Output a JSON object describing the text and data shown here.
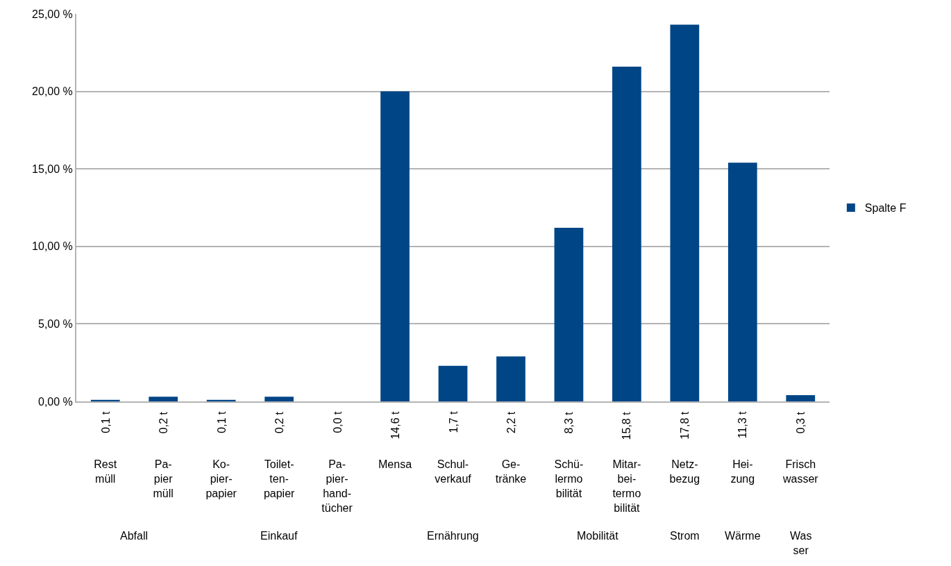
{
  "chart_data": {
    "type": "bar",
    "categories": [
      "Rest\nmüll",
      "Pa-\npier\nmüll",
      "Ko-\npier-\npapier",
      "Toilet-\nten-\npapier",
      "Pa-\npier-\nhand-\ntücher",
      "Mensa",
      "Schul-\nverkauf",
      "Ge-\ntränke",
      "Schü-\nlermo\nbilität",
      "Mitar-\nbei-\ntermo\nbilität",
      "Netz-\nbezug",
      "Hei-\nzung",
      "Frisch\nwasser"
    ],
    "series": [
      {
        "name": "Spalte F",
        "color": "#004586",
        "values": [
          0.1,
          0.3,
          0.1,
          0.3,
          0.0,
          20.0,
          2.3,
          2.9,
          11.2,
          21.6,
          24.3,
          15.4,
          0.4
        ]
      }
    ],
    "ylim": [
      0,
      25
    ],
    "yticks": [
      {
        "value": 0,
        "label": "0,00 %"
      },
      {
        "value": 5,
        "label": "5,00 %"
      },
      {
        "value": 10,
        "label": "10,00 %"
      },
      {
        "value": 15,
        "label": "15,00 %"
      },
      {
        "value": 20,
        "label": "20,00 %"
      },
      {
        "value": 25,
        "label": "25,00 %"
      }
    ],
    "grid": "y",
    "legend": "right",
    "annotations": [
      "0,1 t",
      "0,2 t",
      "0,1 t",
      "0,2 t",
      "0,0 t",
      "14,6 t",
      "1,7 t",
      "2,2 t",
      "8,3 t",
      "15,8 t",
      "17,8 t",
      "11,3 t",
      "0,3 t",
      "Abfall",
      "Einkauf",
      "Ernährung",
      "Mobilität",
      "Strom",
      "Wärme",
      "Was\nser"
    ]
  }
}
